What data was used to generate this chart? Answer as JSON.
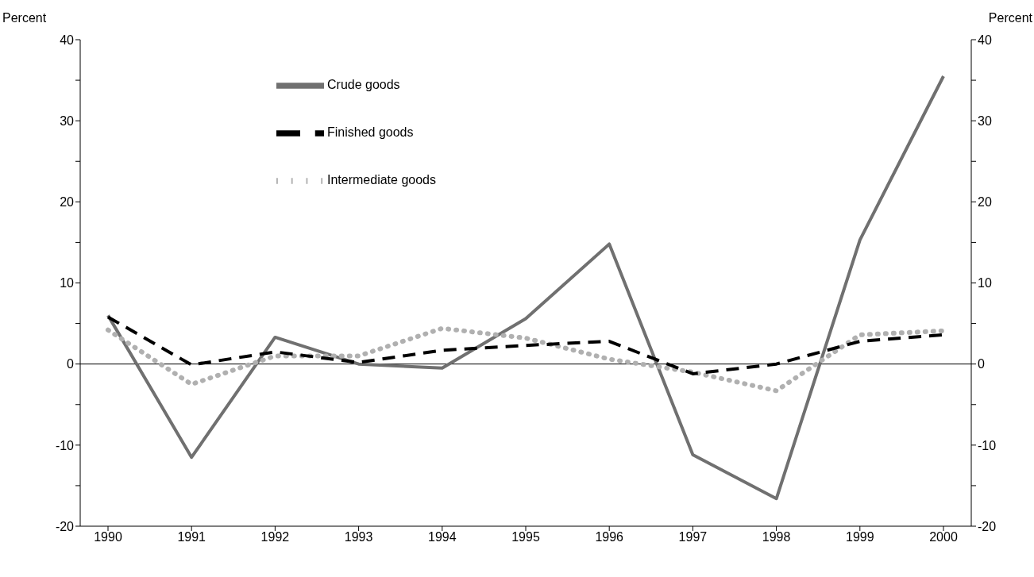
{
  "chart_data": {
    "type": "line",
    "ylabel": "Percent",
    "y2label": "Percent",
    "categories": [
      "1990",
      "1991",
      "1992",
      "1993",
      "1994",
      "1995",
      "1996",
      "1997",
      "1998",
      "1999",
      "2000"
    ],
    "series": [
      {
        "name": "Crude goods",
        "color": "#707070",
        "line_style": "solid",
        "values": [
          6.0,
          -11.5,
          3.3,
          0.0,
          -0.5,
          5.6,
          14.8,
          -11.2,
          -16.6,
          15.3,
          35.5
        ]
      },
      {
        "name": "Intermediate goods",
        "color": "#b0b0b0",
        "line_style": "dotted",
        "values": [
          4.2,
          -2.5,
          1.0,
          1.0,
          4.4,
          3.2,
          0.6,
          -1.0,
          -3.3,
          3.6,
          4.1
        ]
      },
      {
        "name": "Finished goods",
        "color": "#000000",
        "line_style": "dashed",
        "values": [
          5.8,
          -0.1,
          1.5,
          0.2,
          1.7,
          2.3,
          2.8,
          -1.2,
          0.0,
          2.8,
          3.6
        ]
      }
    ],
    "ylim": [
      -20,
      40
    ],
    "yticks": [
      -20,
      {
        "value": -15,
        "label": null
      },
      -10,
      {
        "value": -5,
        "label": null
      },
      0,
      {
        "value": 5,
        "label": null
      },
      10,
      {
        "value": 15,
        "label": null
      },
      20,
      {
        "value": 25,
        "label": null
      },
      30,
      {
        "value": 35,
        "label": null
      },
      40
    ],
    "y2lim": [
      -20,
      40
    ],
    "y2ticks": [
      -20,
      {
        "value": -15,
        "label": null
      },
      -10,
      {
        "value": -5,
        "label": null
      },
      0,
      {
        "value": 5,
        "label": null
      },
      10,
      {
        "value": 15,
        "label": null
      },
      20,
      {
        "value": 25,
        "label": null
      },
      30,
      {
        "value": 35,
        "label": null
      },
      40
    ],
    "ref_lines": [
      {
        "axis": "y",
        "value": 0,
        "color": "#000000"
      }
    ],
    "legend": "top left"
  }
}
